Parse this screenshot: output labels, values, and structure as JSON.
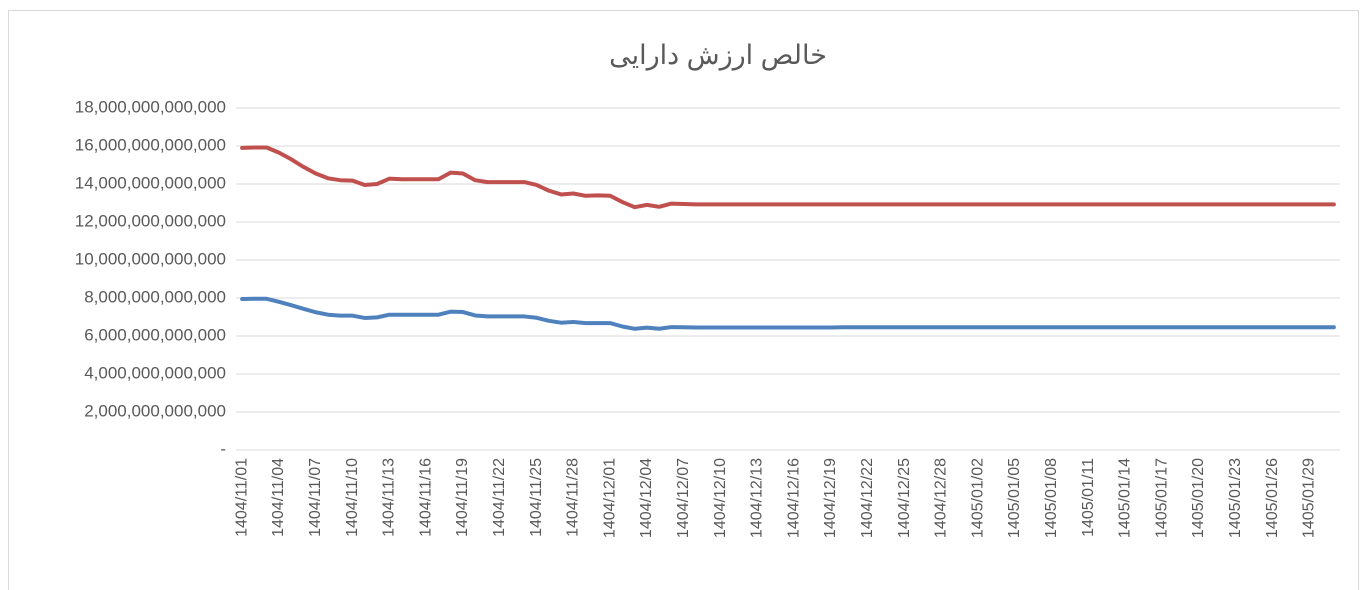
{
  "chart_data": {
    "type": "line",
    "title": "خالص ارزش دارایی",
    "categories": [
      "1404/11/01",
      null,
      null,
      "1404/11/04",
      null,
      null,
      "1404/11/07",
      null,
      null,
      "1404/11/10",
      null,
      null,
      "1404/11/13",
      null,
      null,
      "1404/11/16",
      null,
      null,
      "1404/11/19",
      null,
      null,
      "1404/11/22",
      null,
      null,
      "1404/11/25",
      null,
      null,
      "1404/11/28",
      null,
      null,
      "1404/12/01",
      null,
      null,
      "1404/12/04",
      null,
      null,
      "1404/12/07",
      null,
      null,
      "1404/12/10",
      null,
      null,
      "1404/12/13",
      null,
      null,
      "1404/12/16",
      null,
      null,
      "1404/12/19",
      null,
      null,
      "1404/12/22",
      null,
      null,
      "1404/12/25",
      null,
      null,
      "1404/12/28",
      null,
      null,
      "1405/01/02",
      null,
      null,
      "1405/01/05",
      null,
      null,
      "1405/01/08",
      null,
      null,
      "1405/01/11",
      null,
      null,
      "1405/01/14",
      null,
      null,
      "1405/01/17",
      null,
      null,
      "1405/01/20",
      null,
      null,
      "1405/01/23",
      null,
      null,
      "1405/01/26",
      null,
      null,
      "1405/01/29",
      null,
      null
    ],
    "series": [
      {
        "color": "#c0504d",
        "values": [
          15900000000000.0,
          15920000000000.0,
          15920000000000.0,
          15650000000000.0,
          15300000000000.0,
          14900000000000.0,
          14550000000000.0,
          14300000000000.0,
          14200000000000.0,
          14180000000000.0,
          13950000000000.0,
          14000000000000.0,
          14280000000000.0,
          14250000000000.0,
          14250000000000.0,
          14250000000000.0,
          14250000000000.0,
          14600000000000.0,
          14550000000000.0,
          14200000000000.0,
          14100000000000.0,
          14100000000000.0,
          14100000000000.0,
          14100000000000.0,
          13950000000000.0,
          13650000000000.0,
          13450000000000.0,
          13500000000000.0,
          13380000000000.0,
          13400000000000.0,
          13380000000000.0,
          13050000000000.0,
          12780000000000.0,
          12900000000000.0,
          12800000000000.0,
          12970000000000.0,
          12950000000000.0,
          12930000000000.0,
          12930000000000.0,
          12930000000000.0,
          12930000000000.0,
          12930000000000.0,
          12930000000000.0,
          12930000000000.0,
          12930000000000.0,
          12930000000000.0,
          12930000000000.0,
          12930000000000.0,
          12930000000000.0,
          12930000000000.0,
          12930000000000.0,
          12930000000000.0,
          12930000000000.0,
          12930000000000.0,
          12930000000000.0,
          12930000000000.0,
          12930000000000.0,
          12930000000000.0,
          12930000000000.0,
          12930000000000.0,
          12930000000000.0,
          12930000000000.0,
          12930000000000.0,
          12930000000000.0,
          12930000000000.0,
          12930000000000.0,
          12930000000000.0,
          12930000000000.0,
          12930000000000.0,
          12930000000000.0,
          12930000000000.0,
          12930000000000.0,
          12930000000000.0,
          12930000000000.0,
          12930000000000.0,
          12930000000000.0,
          12930000000000.0,
          12930000000000.0,
          12930000000000.0,
          12930000000000.0,
          12930000000000.0,
          12930000000000.0,
          12930000000000.0,
          12930000000000.0,
          12930000000000.0,
          12930000000000.0,
          12930000000000.0,
          12930000000000.0,
          12930000000000.0,
          12930000000000.0
        ]
      },
      {
        "color": "#4f81bd",
        "values": [
          7950000000000.0,
          7960000000000.0,
          7960000000000.0,
          7800000000000.0,
          7620000000000.0,
          7430000000000.0,
          7250000000000.0,
          7120000000000.0,
          7070000000000.0,
          7070000000000.0,
          6950000000000.0,
          6980000000000.0,
          7120000000000.0,
          7120000000000.0,
          7120000000000.0,
          7120000000000.0,
          7120000000000.0,
          7280000000000.0,
          7260000000000.0,
          7080000000000.0,
          7030000000000.0,
          7030000000000.0,
          7030000000000.0,
          7030000000000.0,
          6960000000000.0,
          6800000000000.0,
          6700000000000.0,
          6740000000000.0,
          6680000000000.0,
          6680000000000.0,
          6680000000000.0,
          6500000000000.0,
          6380000000000.0,
          6440000000000.0,
          6380000000000.0,
          6470000000000.0,
          6460000000000.0,
          6450000000000.0,
          6450000000000.0,
          6450000000000.0,
          6450000000000.0,
          6450000000000.0,
          6450000000000.0,
          6450000000000.0,
          6450000000000.0,
          6450000000000.0,
          6450000000000.0,
          6450000000000.0,
          6450000000000.0,
          6460000000000.0,
          6460000000000.0,
          6460000000000.0,
          6460000000000.0,
          6460000000000.0,
          6460000000000.0,
          6460000000000.0,
          6460000000000.0,
          6460000000000.0,
          6460000000000.0,
          6460000000000.0,
          6460000000000.0,
          6460000000000.0,
          6460000000000.0,
          6460000000000.0,
          6460000000000.0,
          6460000000000.0,
          6460000000000.0,
          6460000000000.0,
          6460000000000.0,
          6460000000000.0,
          6460000000000.0,
          6460000000000.0,
          6460000000000.0,
          6460000000000.0,
          6460000000000.0,
          6460000000000.0,
          6460000000000.0,
          6460000000000.0,
          6460000000000.0,
          6460000000000.0,
          6460000000000.0,
          6460000000000.0,
          6460000000000.0,
          6460000000000.0,
          6460000000000.0,
          6460000000000.0,
          6460000000000.0,
          6460000000000.0,
          6460000000000.0,
          6460000000000.0
        ]
      }
    ],
    "ylim": [
      0,
      18000000000000.0
    ],
    "yticks": [
      {
        "value": 0,
        "label": "-"
      },
      {
        "value": 2000000000000.0,
        "label": "2,000,000,000,000"
      },
      {
        "value": 4000000000000.0,
        "label": "4,000,000,000,000"
      },
      {
        "value": 6000000000000.0,
        "label": "6,000,000,000,000"
      },
      {
        "value": 8000000000000.0,
        "label": "8,000,000,000,000"
      },
      {
        "value": 10000000000000.0,
        "label": "10,000,000,000,000"
      },
      {
        "value": 12000000000000.0,
        "label": "12,000,000,000,000"
      },
      {
        "value": 14000000000000.0,
        "label": "14,000,000,000,000"
      },
      {
        "value": 16000000000000.0,
        "label": "16,000,000,000,000"
      },
      {
        "value": 18000000000000.0,
        "label": "18,000,000,000,000"
      }
    ],
    "grid": true
  }
}
